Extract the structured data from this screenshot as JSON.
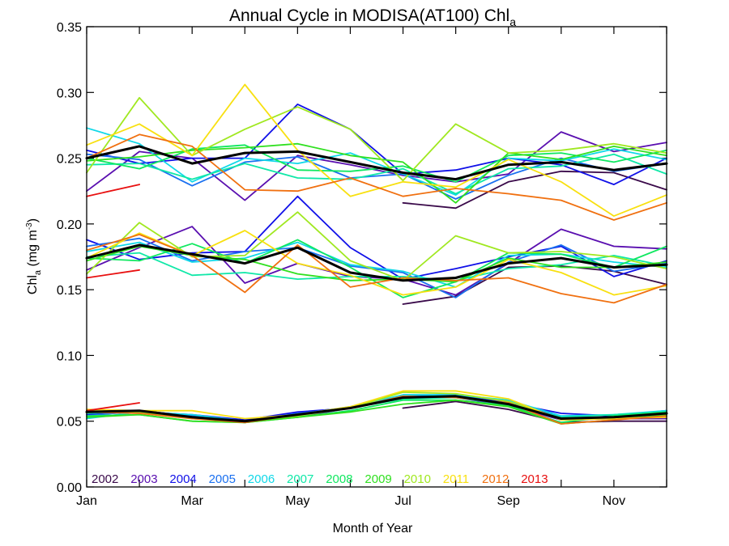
{
  "chart_data": {
    "type": "line",
    "title_main": "Annual Cycle in MODISA(AT100) Chl",
    "title_sub": "a",
    "xlabel": "Month of Year",
    "ylabel_main": "Chl",
    "ylabel_sub": "a",
    "ylabel_units": " (mg m",
    "ylabel_sup": "-3",
    "ylabel_close": ")",
    "xlim": [
      1,
      12
    ],
    "ylim": [
      0,
      0.35
    ],
    "x_ticks": [
      {
        "value": 1,
        "label": "Jan"
      },
      {
        "value": 3,
        "label": "Mar"
      },
      {
        "value": 5,
        "label": "May"
      },
      {
        "value": 7,
        "label": "Jul"
      },
      {
        "value": 9,
        "label": "Sep"
      },
      {
        "value": 11,
        "label": "Nov"
      }
    ],
    "y_ticks": [
      {
        "value": 0.0,
        "label": "0.00"
      },
      {
        "value": 0.05,
        "label": "0.05"
      },
      {
        "value": 0.1,
        "label": "0.10"
      },
      {
        "value": 0.15,
        "label": "0.15"
      },
      {
        "value": 0.2,
        "label": "0.20"
      },
      {
        "value": 0.25,
        "label": "0.25"
      },
      {
        "value": 0.3,
        "label": "0.30"
      },
      {
        "value": 0.35,
        "label": "0.35"
      }
    ],
    "legend_position": "bottom-left",
    "groups": [
      "upper",
      "median",
      "lower"
    ],
    "series": [
      {
        "name": "2002",
        "color": "#3a0a4a",
        "upper": [
          null,
          null,
          null,
          null,
          null,
          null,
          0.216,
          0.212,
          0.232,
          0.24,
          0.239,
          0.226
        ],
        "median": [
          null,
          null,
          null,
          null,
          null,
          null,
          0.139,
          0.145,
          0.167,
          0.168,
          0.164,
          0.154
        ],
        "lower": [
          null,
          null,
          null,
          null,
          null,
          null,
          0.06,
          0.065,
          0.059,
          0.049,
          0.05,
          0.05
        ]
      },
      {
        "name": "2003",
        "color": "#5a0fb0",
        "upper": [
          0.225,
          0.255,
          0.25,
          0.218,
          0.252,
          0.245,
          0.237,
          0.232,
          0.238,
          0.27,
          0.255,
          0.262
        ],
        "median": [
          0.165,
          0.182,
          0.198,
          0.155,
          0.17,
          0.16,
          0.158,
          0.146,
          0.17,
          0.196,
          0.183,
          0.181
        ],
        "lower": [
          0.057,
          0.058,
          0.054,
          0.051,
          0.053,
          0.06,
          0.068,
          0.068,
          0.062,
          0.051,
          0.052,
          0.052
        ]
      },
      {
        "name": "2004",
        "color": "#1010e8",
        "upper": [
          0.256,
          0.246,
          0.25,
          0.25,
          0.291,
          0.272,
          0.238,
          0.241,
          0.25,
          0.245,
          0.23,
          0.25
        ],
        "median": [
          0.188,
          0.173,
          0.178,
          0.179,
          0.221,
          0.182,
          0.158,
          0.166,
          0.175,
          0.183,
          0.16,
          0.172
        ],
        "lower": [
          0.055,
          0.057,
          0.055,
          0.051,
          0.057,
          0.06,
          0.069,
          0.07,
          0.064,
          0.056,
          0.054,
          0.058
        ]
      },
      {
        "name": "2005",
        "color": "#1a70f0",
        "upper": [
          0.253,
          0.249,
          0.229,
          0.247,
          0.251,
          0.235,
          0.238,
          0.219,
          0.237,
          0.25,
          0.24,
          0.246
        ],
        "median": [
          0.183,
          0.189,
          0.172,
          0.179,
          0.182,
          0.168,
          0.163,
          0.144,
          0.171,
          0.184,
          0.164,
          0.17
        ],
        "lower": [
          0.054,
          0.058,
          0.054,
          0.05,
          0.056,
          0.06,
          0.07,
          0.07,
          0.065,
          0.053,
          0.053,
          0.057
        ]
      },
      {
        "name": "2006",
        "color": "#10d8e8",
        "upper": [
          0.273,
          0.261,
          0.232,
          0.25,
          0.246,
          0.254,
          0.238,
          0.222,
          0.25,
          0.248,
          0.257,
          0.249
        ],
        "median": [
          0.179,
          0.186,
          0.171,
          0.174,
          0.186,
          0.169,
          0.164,
          0.152,
          0.176,
          0.177,
          0.171,
          0.167
        ],
        "lower": [
          0.052,
          0.057,
          0.055,
          0.05,
          0.055,
          0.061,
          0.07,
          0.07,
          0.066,
          0.054,
          0.055,
          0.058
        ]
      },
      {
        "name": "2007",
        "color": "#10e8a8",
        "upper": [
          0.245,
          0.246,
          0.234,
          0.246,
          0.235,
          0.234,
          0.242,
          0.223,
          0.242,
          0.244,
          0.253,
          0.238
        ],
        "median": [
          0.175,
          0.178,
          0.161,
          0.163,
          0.158,
          0.16,
          0.16,
          0.157,
          0.166,
          0.169,
          0.176,
          0.168
        ],
        "lower": [
          0.056,
          0.058,
          0.053,
          0.049,
          0.054,
          0.06,
          0.067,
          0.068,
          0.063,
          0.053,
          0.055,
          0.057
        ]
      },
      {
        "name": "2008",
        "color": "#10e860",
        "upper": [
          0.25,
          0.242,
          0.257,
          0.26,
          0.241,
          0.24,
          0.244,
          0.232,
          0.252,
          0.254,
          0.247,
          0.256
        ],
        "median": [
          0.174,
          0.172,
          0.185,
          0.17,
          0.188,
          0.167,
          0.144,
          0.156,
          0.178,
          0.177,
          0.167,
          0.183
        ],
        "lower": [
          0.054,
          0.055,
          0.05,
          0.049,
          0.053,
          0.058,
          0.066,
          0.066,
          0.062,
          0.049,
          0.054,
          0.057
        ]
      },
      {
        "name": "2009",
        "color": "#30e020",
        "upper": [
          0.248,
          0.251,
          0.256,
          0.258,
          0.261,
          0.252,
          0.247,
          0.216,
          0.254,
          0.249,
          0.259,
          0.252
        ],
        "median": [
          0.172,
          0.183,
          0.176,
          0.173,
          0.162,
          0.157,
          0.158,
          0.156,
          0.174,
          0.167,
          0.167,
          0.171
        ],
        "lower": [
          0.053,
          0.055,
          0.05,
          0.049,
          0.053,
          0.057,
          0.063,
          0.066,
          0.061,
          0.048,
          0.051,
          0.055
        ]
      },
      {
        "name": "2010",
        "color": "#a0e820",
        "upper": [
          0.239,
          0.296,
          0.252,
          0.272,
          0.289,
          0.272,
          0.233,
          0.276,
          0.254,
          0.256,
          0.261,
          0.254
        ],
        "median": [
          0.162,
          0.201,
          0.175,
          0.176,
          0.209,
          0.172,
          0.157,
          0.191,
          0.178,
          0.179,
          0.175,
          0.166
        ],
        "lower": [
          0.058,
          0.057,
          0.052,
          0.05,
          0.054,
          0.06,
          0.072,
          0.071,
          0.065,
          0.052,
          0.052,
          0.056
        ]
      },
      {
        "name": "2011",
        "color": "#f8e010",
        "upper": [
          0.26,
          0.276,
          0.252,
          0.306,
          0.256,
          0.221,
          0.232,
          0.228,
          0.249,
          0.232,
          0.206,
          0.222
        ],
        "median": [
          0.174,
          0.193,
          0.176,
          0.195,
          0.17,
          0.161,
          0.146,
          0.152,
          0.173,
          0.163,
          0.146,
          0.153
        ],
        "lower": [
          0.059,
          0.058,
          0.058,
          0.052,
          0.055,
          0.061,
          0.073,
          0.073,
          0.067,
          0.051,
          0.052,
          0.053
        ]
      },
      {
        "name": "2012",
        "color": "#f07010",
        "upper": [
          0.25,
          0.268,
          0.259,
          0.226,
          0.225,
          0.235,
          0.221,
          0.227,
          0.223,
          0.218,
          0.203,
          0.216
        ],
        "median": [
          0.18,
          0.192,
          0.176,
          0.148,
          0.184,
          0.152,
          0.159,
          0.157,
          0.159,
          0.147,
          0.14,
          0.154
        ],
        "lower": [
          0.057,
          0.056,
          0.052,
          0.049,
          0.055,
          0.06,
          0.069,
          0.068,
          0.064,
          0.048,
          0.051,
          0.054
        ]
      },
      {
        "name": "2013",
        "color": "#e81010",
        "upper": [
          0.221,
          0.23,
          null,
          null,
          null,
          null,
          null,
          null,
          null,
          null,
          null,
          null
        ],
        "median": [
          0.159,
          0.165,
          null,
          null,
          null,
          null,
          null,
          null,
          null,
          null,
          null,
          null
        ],
        "lower": [
          0.058,
          0.064,
          null,
          null,
          null,
          null,
          null,
          null,
          null,
          null,
          null,
          null
        ]
      },
      {
        "name": "",
        "color": "#000000",
        "role": "climatology",
        "upper": [
          0.25,
          0.259,
          0.246,
          0.254,
          0.255,
          0.247,
          0.239,
          0.234,
          0.245,
          0.247,
          0.241,
          0.246
        ],
        "median": [
          0.174,
          0.184,
          0.177,
          0.17,
          0.182,
          0.163,
          0.157,
          0.159,
          0.17,
          0.174,
          0.167,
          0.169
        ],
        "lower": [
          0.057,
          0.058,
          0.053,
          0.05,
          0.055,
          0.06,
          0.068,
          0.069,
          0.063,
          0.052,
          0.053,
          0.056
        ]
      }
    ]
  }
}
